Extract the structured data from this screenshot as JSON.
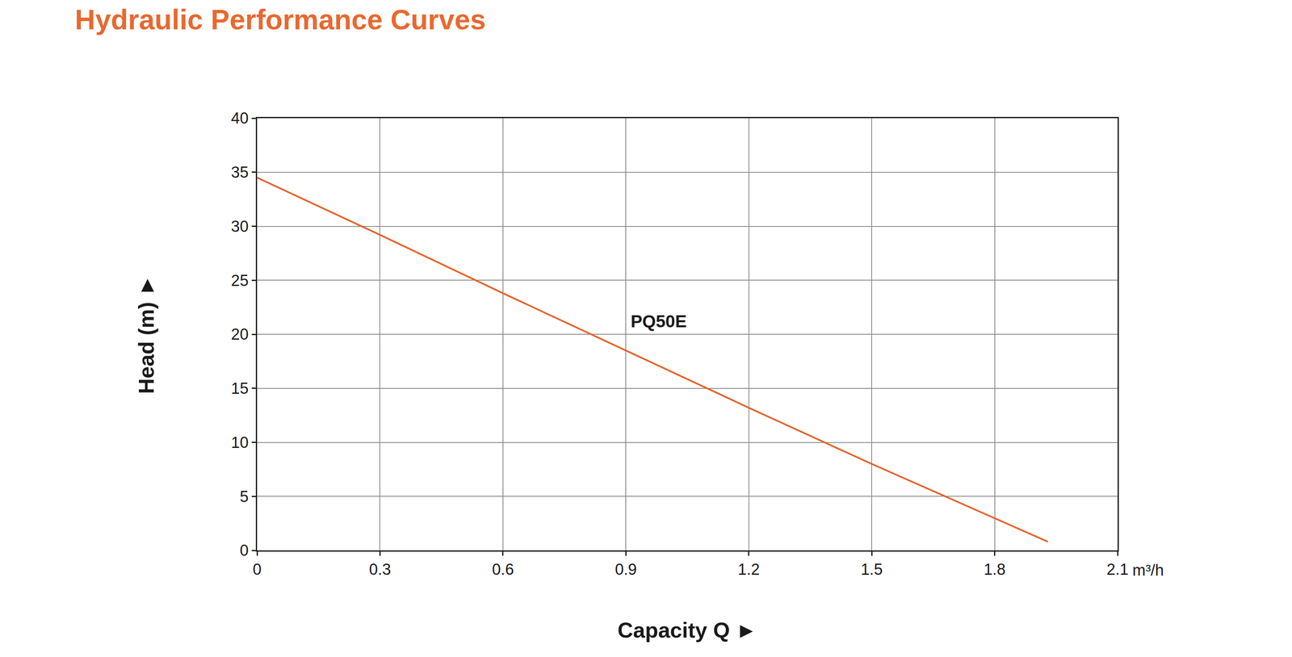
{
  "chart_data": {
    "type": "line",
    "title": "Hydraulic Performance Curves",
    "x_label": "Capacity Q ►",
    "y_label": "Head (m) ►",
    "x_unit_label": "m³/h",
    "series": [
      {
        "name": "PQ50E",
        "color": "#e3622c",
        "x": [
          0,
          0.3,
          0.6,
          0.9,
          1.2,
          1.5,
          1.8,
          1.93
        ],
        "values": [
          34.5,
          29.2,
          23.8,
          18.5,
          13.2,
          8.0,
          3.0,
          0.8
        ]
      }
    ],
    "annotations": [
      {
        "text": "PQ50E",
        "x": 0.98,
        "y": 21.2
      }
    ],
    "xlim": [
      0,
      2.1
    ],
    "xticks": [
      0,
      0.3,
      0.6,
      0.9,
      1.2,
      1.5,
      1.8,
      2.1
    ],
    "ylim": [
      0,
      40
    ],
    "yticks": [
      0,
      5,
      10,
      15,
      20,
      25,
      30,
      35,
      40
    ],
    "grid": true
  }
}
